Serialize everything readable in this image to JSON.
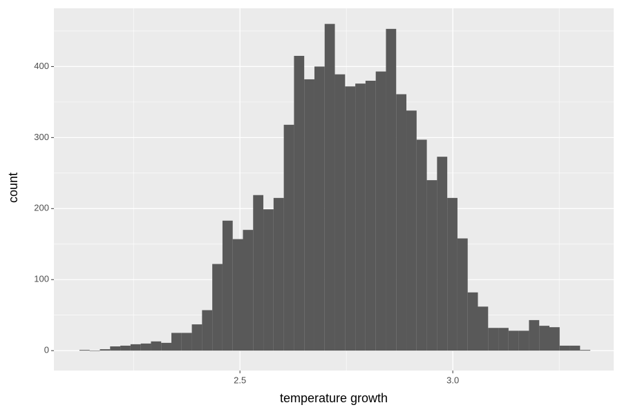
{
  "chart_data": {
    "type": "histogram",
    "xlabel": "temperature growth",
    "ylabel": "count",
    "bins": [
      2.123,
      2.147,
      2.171,
      2.195,
      2.219,
      2.243,
      2.267,
      2.291,
      2.315,
      2.339,
      2.363,
      2.387,
      2.411,
      2.435,
      2.459,
      2.483,
      2.507,
      2.531,
      2.555,
      2.579,
      2.603,
      2.627,
      2.651,
      2.675,
      2.699,
      2.723,
      2.747,
      2.771,
      2.795,
      2.819,
      2.843,
      2.867,
      2.891,
      2.915,
      2.939,
      2.963,
      2.987,
      3.011,
      3.035,
      3.059,
      3.083,
      3.107,
      3.131,
      3.155,
      3.179,
      3.203,
      3.227,
      3.251,
      3.275,
      3.299,
      3.323
    ],
    "values": [
      1,
      0,
      2,
      6,
      7,
      9,
      10,
      13,
      11,
      25,
      25,
      37,
      57,
      122,
      183,
      157,
      170,
      219,
      199,
      215,
      318,
      415,
      382,
      400,
      460,
      389,
      372,
      376,
      380,
      393,
      453,
      361,
      338,
      297,
      240,
      273,
      215,
      158,
      82,
      62,
      32,
      32,
      28,
      28,
      43,
      35,
      33,
      7,
      7,
      1
    ],
    "color": "#595959",
    "xlim": [
      2.063,
      3.378
    ],
    "ylim": [
      -28,
      482
    ],
    "xticks": [
      2.5,
      {
        "value": 3,
        "label": "3.0"
      }
    ],
    "yticks": [
      0,
      100,
      200,
      300,
      400
    ],
    "xminor": [
      2.25,
      2.75,
      3.25
    ],
    "yminor": [
      50,
      150,
      250,
      350,
      450
    ],
    "grid": true
  }
}
